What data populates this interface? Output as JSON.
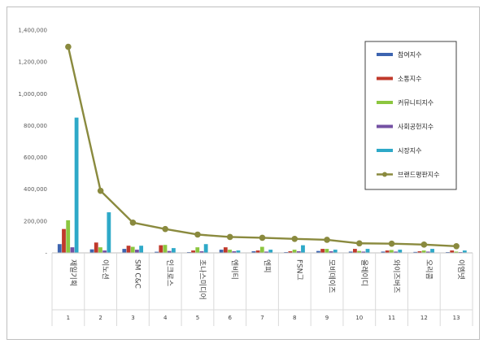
{
  "chart_data": {
    "type": "bar",
    "categories": [
      "제일기획",
      "이노션",
      "SM C&C",
      "인크로스",
      "초나스미디어",
      "엔비티",
      "엔피",
      "FSN그",
      "모비데이즈",
      "올레이디",
      "와이즈버즈",
      "오리콤",
      "이엠넷"
    ],
    "ranks": [
      "1",
      "2",
      "3",
      "4",
      "5",
      "6",
      "7",
      "8",
      "9",
      "10",
      "11",
      "12",
      "13"
    ],
    "ylim": [
      0,
      1400000
    ],
    "yticks": [
      0,
      200000,
      400000,
      600000,
      800000,
      1000000,
      1200000,
      1400000
    ],
    "ytick_labels": [
      "-",
      "200,000",
      "400,000",
      "600,000",
      "800,000",
      "1,000,000",
      "1,200,000",
      "1,400,000"
    ],
    "series": [
      {
        "name": "참여지수",
        "type": "bar",
        "color": "#3d64b0",
        "values": [
          55000,
          22000,
          25000,
          7000,
          5000,
          20000,
          10000,
          5000,
          12000,
          8000,
          8000,
          6000,
          5000
        ]
      },
      {
        "name": "소통지수",
        "type": "bar",
        "color": "#c0392b",
        "values": [
          150000,
          65000,
          45000,
          48000,
          15000,
          35000,
          15000,
          10000,
          25000,
          25000,
          15000,
          10000,
          15000
        ]
      },
      {
        "name": "커뮤니티지수",
        "type": "bar",
        "color": "#8cc63f",
        "values": [
          205000,
          35000,
          38000,
          50000,
          35000,
          20000,
          38000,
          20000,
          25000,
          12000,
          18000,
          15000,
          8000
        ]
      },
      {
        "name": "사회공헌지수",
        "type": "bar",
        "color": "#7451a3",
        "values": [
          35000,
          15000,
          20000,
          12000,
          10000,
          10000,
          8000,
          10000,
          10000,
          8000,
          8000,
          8000,
          5000
        ]
      },
      {
        "name": "시장지수",
        "type": "bar",
        "color": "#2ea9c8",
        "values": [
          850000,
          255000,
          45000,
          30000,
          55000,
          15000,
          20000,
          48000,
          20000,
          25000,
          20000,
          25000,
          15000
        ]
      },
      {
        "name": "브랜드평판지수",
        "type": "line",
        "color": "#8a8a3e",
        "values": [
          1295000,
          390000,
          190000,
          150000,
          115000,
          100000,
          95000,
          88000,
          82000,
          60000,
          58000,
          52000,
          42000
        ]
      }
    ],
    "legend_position": "top-right",
    "grid": false
  }
}
